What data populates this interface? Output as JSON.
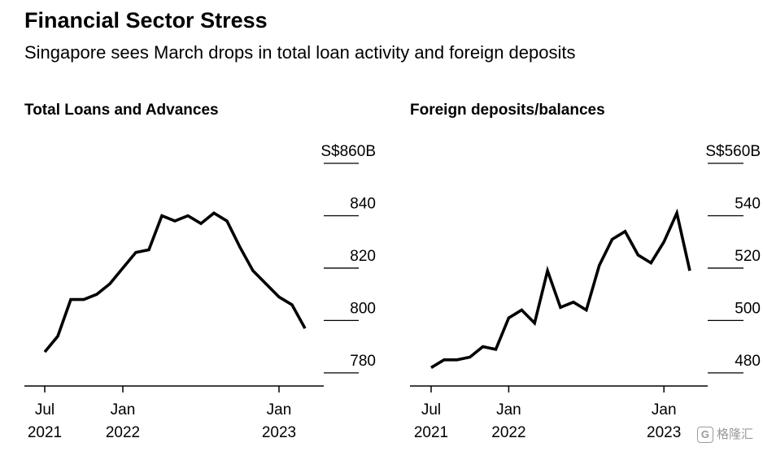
{
  "header": {
    "title": "Financial Sector Stress",
    "subtitle": "Singapore sees March drops in total loan activity and foreign deposits"
  },
  "watermark": {
    "badge": "G",
    "text": "格隆汇"
  },
  "colors": {
    "line": "#000000",
    "grid": "#000000",
    "background": "#ffffff"
  },
  "chart_data": [
    {
      "type": "line",
      "title": "Total Loans and Advances",
      "xlabel": "",
      "ylabel": "",
      "ylim": [
        775,
        860
      ],
      "y_ticks": [
        780,
        800,
        820,
        840,
        860
      ],
      "y_tick_labels": [
        "780",
        "800",
        "820",
        "840",
        "S$860B"
      ],
      "xlim": [
        0,
        21
      ],
      "x_ticks": [
        {
          "x": 0,
          "line1": "Jul",
          "line2": "2021"
        },
        {
          "x": 6,
          "line1": "Jan",
          "line2": "2022"
        },
        {
          "x": 18,
          "line1": "Jan",
          "line2": "2023"
        }
      ],
      "x": [
        0,
        1,
        2,
        3,
        4,
        5,
        6,
        7,
        8,
        9,
        10,
        11,
        12,
        13,
        14,
        15,
        16,
        17,
        18,
        19,
        20
      ],
      "values": [
        788,
        794,
        808,
        808,
        810,
        814,
        820,
        826,
        827,
        840,
        838,
        840,
        837,
        841,
        838,
        828,
        819,
        814,
        809,
        806,
        797
      ],
      "grid": true,
      "legend": "none"
    },
    {
      "type": "line",
      "title": "Foreign deposits/balances",
      "xlabel": "",
      "ylabel": "",
      "ylim": [
        475,
        560
      ],
      "y_ticks": [
        480,
        500,
        520,
        540,
        560
      ],
      "y_tick_labels": [
        "480",
        "500",
        "520",
        "540",
        "S$560B"
      ],
      "xlim": [
        0,
        21
      ],
      "x_ticks": [
        {
          "x": 0,
          "line1": "Jul",
          "line2": "2021"
        },
        {
          "x": 6,
          "line1": "Jan",
          "line2": "2022"
        },
        {
          "x": 18,
          "line1": "Jan",
          "line2": "2023"
        }
      ],
      "x": [
        0,
        1,
        2,
        3,
        4,
        5,
        6,
        7,
        8,
        9,
        10,
        11,
        12,
        13,
        14,
        15,
        16,
        17,
        18,
        19,
        20
      ],
      "values": [
        482,
        485,
        485,
        486,
        490,
        489,
        501,
        504,
        499,
        519,
        505,
        507,
        504,
        521,
        531,
        534,
        525,
        522,
        530,
        541,
        519
      ],
      "grid": true,
      "legend": "none"
    }
  ]
}
